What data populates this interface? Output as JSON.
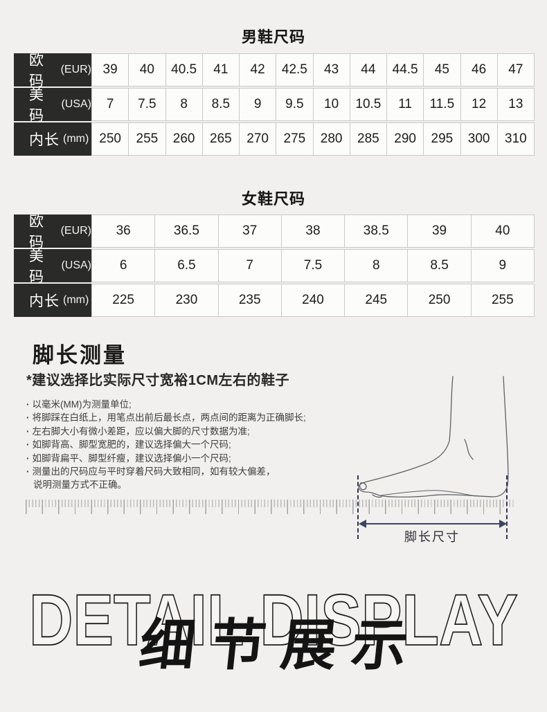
{
  "men": {
    "title": "男鞋尺码",
    "rows": [
      {
        "label": "欧码",
        "unit": "(EUR)",
        "values": [
          "39",
          "40",
          "40.5",
          "41",
          "42",
          "42.5",
          "43",
          "44",
          "44.5",
          "45",
          "46",
          "47"
        ]
      },
      {
        "label": "美码",
        "unit": "(USA)",
        "values": [
          "7",
          "7.5",
          "8",
          "8.5",
          "9",
          "9.5",
          "10",
          "10.5",
          "11",
          "11.5",
          "12",
          "13"
        ]
      },
      {
        "label": "内长",
        "unit": "(mm)",
        "values": [
          "250",
          "255",
          "260",
          "265",
          "270",
          "275",
          "280",
          "285",
          "290",
          "295",
          "300",
          "310"
        ]
      }
    ]
  },
  "women": {
    "title": "女鞋尺码",
    "rows": [
      {
        "label": "欧码",
        "unit": "(EUR)",
        "values": [
          "36",
          "36.5",
          "37",
          "38",
          "38.5",
          "39",
          "40"
        ]
      },
      {
        "label": "美码",
        "unit": "(USA)",
        "values": [
          "6",
          "6.5",
          "7",
          "7.5",
          "8",
          "8.5",
          "9"
        ]
      },
      {
        "label": "内长",
        "unit": "(mm)",
        "values": [
          "225",
          "230",
          "235",
          "240",
          "245",
          "250",
          "255"
        ]
      }
    ]
  },
  "measure": {
    "title": "脚长测量",
    "subtitle": "*建议选择比实际尺寸宽裕1CM左右的鞋子",
    "tips": [
      "以毫米(MM)为测量单位;",
      "将脚踩在白纸上，用笔点出前后最长点，两点间的距离为正确脚长;",
      "左右脚大小有微小差距，应以偏大脚的尺寸数据为准;",
      "如脚背高、脚型宽肥的，建议选择偏大一个尺码;",
      "如脚背扁平、脚型纤瘦，建议选择偏小一个尺码;",
      "测量出的尺码应与平时穿着尺码大致相同，如有较大偏差，"
    ],
    "tip_continuation": "说明测量方式不正确。",
    "diagram_label": "脚长尺寸"
  },
  "footer": {
    "en_text": "DETAIL DISPLAY",
    "zh_text": "细节展示"
  },
  "colors": {
    "page_bg": "#f1f0ee",
    "table_header_bg": "#2a2a28",
    "table_cell_bg": "#fcfcfb",
    "table_border": "#c9c9c8",
    "arrow_navy": "#3d4360",
    "art_black": "#141414"
  }
}
